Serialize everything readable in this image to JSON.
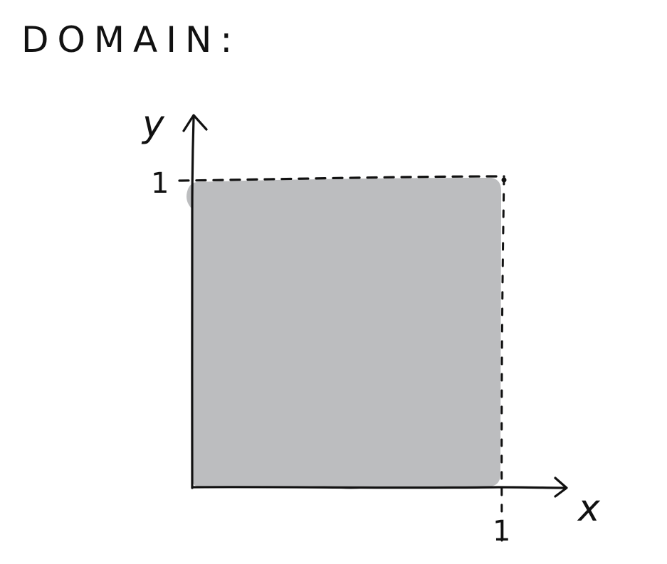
{
  "title": "DOMAIN:",
  "axes": {
    "x_label": "x",
    "y_label": "y",
    "x_tick": "1",
    "y_tick": "1"
  },
  "region": {
    "fill_color": "#bcbdbf",
    "boundary_style": "dashed on top and right edges"
  },
  "colors": {
    "ink": "#111111",
    "background": "#ffffff"
  }
}
